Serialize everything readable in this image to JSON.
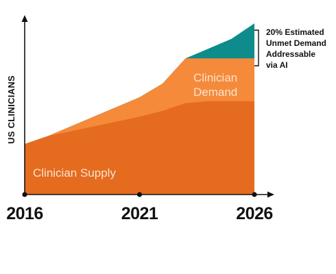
{
  "chart_data": {
    "type": "area",
    "x": [
      2016,
      2017,
      2021,
      2022,
      2023,
      2024,
      2025,
      2026
    ],
    "ylabel": "US CLINICIANS",
    "series": [
      {
        "name": "Clinician Supply",
        "values": [
          26,
          30,
          40,
          43,
          47,
          48,
          48,
          48
        ]
      },
      {
        "name": "Clinician Demand",
        "values": [
          26,
          30,
          50,
          57,
          70,
          70,
          70,
          70
        ]
      },
      {
        "name": "20% Estimated Unmet Demand Addressable via AI",
        "values": [
          26,
          30,
          50,
          57,
          70,
          75,
          80,
          88
        ]
      }
    ],
    "xticks": [
      "2016",
      "2021",
      "2026"
    ],
    "ylim": [
      0,
      100
    ],
    "colors": {
      "supply": "#e56b1f",
      "demand": "#f58a3a",
      "ai": "#0e8c8c",
      "axis": "#111111"
    }
  }
}
